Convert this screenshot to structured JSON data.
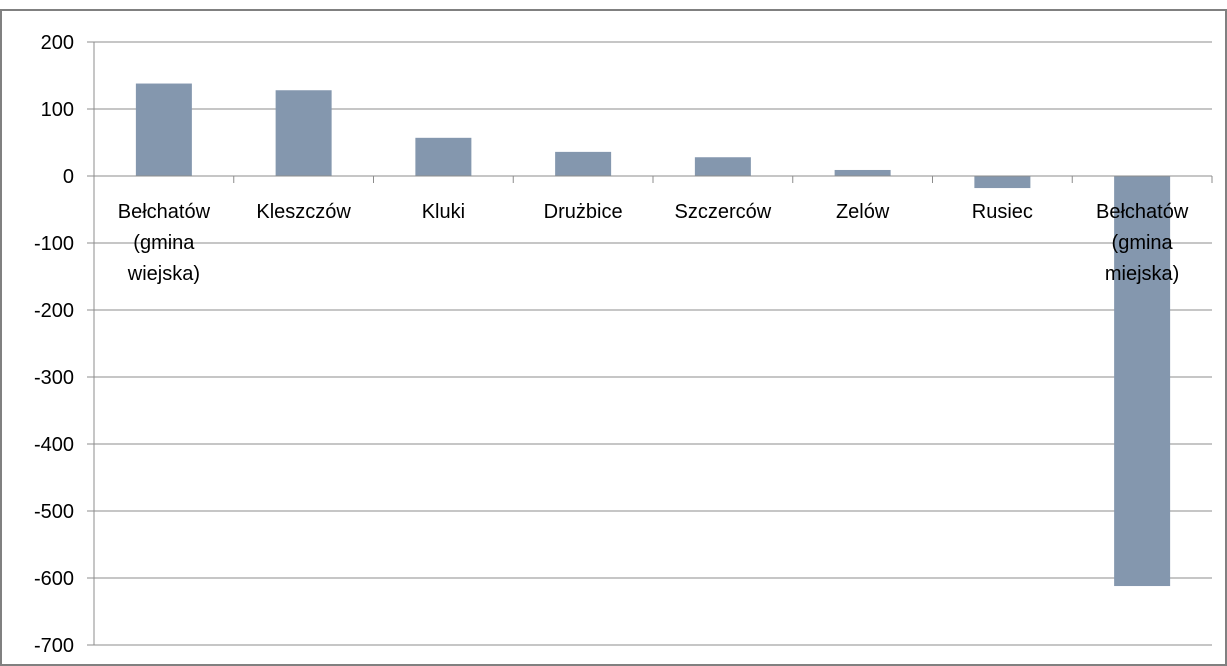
{
  "chart_data": {
    "type": "bar",
    "title": "",
    "xlabel": "",
    "ylabel": "",
    "categories": [
      "Bełchatów (gmina wiejska)",
      "Kleszczów",
      "Kluki",
      "Drużbice",
      "Szczerców",
      "Zelów",
      "Rusiec",
      "Bełchatów (gmina miejska)"
    ],
    "category_lines": [
      [
        "Bełchatów",
        "(gmina",
        "wiejska)"
      ],
      [
        "Kleszczów"
      ],
      [
        "Kluki"
      ],
      [
        "Drużbice"
      ],
      [
        "Szczerców"
      ],
      [
        "Zelów"
      ],
      [
        "Rusiec"
      ],
      [
        "Bełchatów",
        "(gmina",
        "miejska)"
      ]
    ],
    "values": [
      138,
      128,
      57,
      36,
      28,
      9,
      -18,
      -612
    ],
    "ylim": [
      -700,
      200
    ],
    "yticks": [
      200,
      100,
      0,
      -100,
      -200,
      -300,
      -400,
      -500,
      -600,
      -700
    ],
    "grid": true,
    "legend": "none",
    "colors": {
      "bar": "#8497AE",
      "grid": "#8C8C8C",
      "axis": "#8C8C8C",
      "frame": "#808080"
    }
  }
}
